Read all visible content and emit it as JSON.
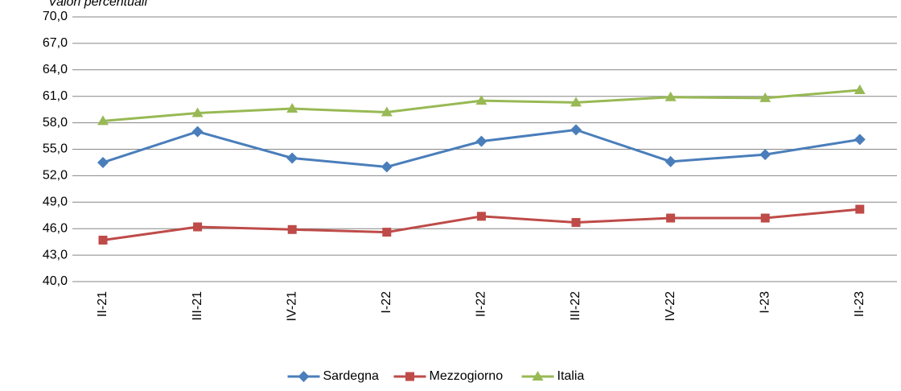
{
  "chart_data": {
    "type": "line",
    "title": "Valori percentuali",
    "categories": [
      "II-21",
      "III-21",
      "IV-21",
      "I-22",
      "II-22",
      "III-22",
      "IV-22",
      "I-23",
      "II-23"
    ],
    "series": [
      {
        "name": "Sardegna",
        "color": "#4a7ebb",
        "marker": "diamond",
        "values": [
          53.5,
          57.0,
          54.0,
          53.0,
          55.9,
          57.2,
          53.6,
          54.4,
          56.1
        ]
      },
      {
        "name": "Mezzogiorno",
        "color": "#be4b48",
        "marker": "square",
        "values": [
          44.7,
          46.2,
          45.9,
          45.6,
          47.4,
          46.7,
          47.2,
          47.2,
          48.2
        ]
      },
      {
        "name": "Italia",
        "color": "#98b954",
        "marker": "triangle",
        "values": [
          58.2,
          59.1,
          59.6,
          59.2,
          60.5,
          60.3,
          60.9,
          60.8,
          61.7
        ]
      }
    ],
    "ylim": [
      40,
      70
    ],
    "yticks": [
      {
        "value": 40,
        "label": "40,0"
      },
      {
        "value": 43,
        "label": "43,0"
      },
      {
        "value": 46,
        "label": "46,0"
      },
      {
        "value": 49,
        "label": "49,0"
      },
      {
        "value": 52,
        "label": "52,0"
      },
      {
        "value": 55,
        "label": "55,0"
      },
      {
        "value": 58,
        "label": "58,0"
      },
      {
        "value": 61,
        "label": "61,0"
      },
      {
        "value": 64,
        "label": "64,0"
      },
      {
        "value": 67,
        "label": "67,0"
      },
      {
        "value": 70,
        "label": "70,0"
      }
    ],
    "grid": true,
    "legend": "bottom"
  }
}
